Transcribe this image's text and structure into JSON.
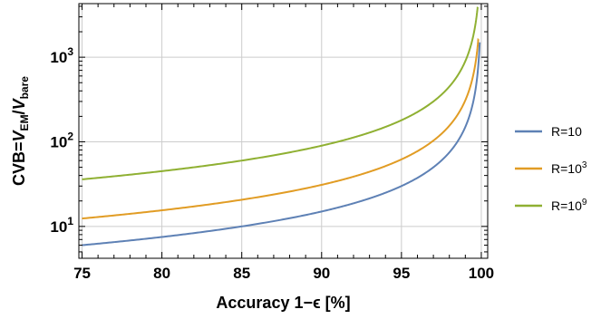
{
  "chart_data": {
    "type": "line",
    "title": "",
    "xlabel": "Accuracy 1−ϵ [%]",
    "ylabel": {
      "prefix": "CVB=",
      "num_var": "V",
      "num_sub": "EM",
      "slash": "/",
      "den_var": "V",
      "den_sub": "bare"
    },
    "xlim": [
      74.8,
      100.4
    ],
    "ylim": [
      4.2,
      4300
    ],
    "y_scale": "log",
    "x_ticks": [
      "75",
      "80",
      "85",
      "90",
      "95",
      "100"
    ],
    "x_tick_values": [
      75,
      80,
      85,
      90,
      95,
      100
    ],
    "y_ticks": [
      {
        "value": 10,
        "base": "10",
        "exp": "1"
      },
      {
        "value": 100,
        "base": "10",
        "exp": "2"
      },
      {
        "value": 1000,
        "base": "10",
        "exp": "3"
      }
    ],
    "grid": true,
    "legend_position": "right",
    "series": [
      {
        "name_base": "R=10",
        "name_exp": "",
        "color": "#5e81b5",
        "k": 1.5,
        "max_x": 99.9
      },
      {
        "name_base": "R=10",
        "name_exp": "3",
        "color": "#e19c24",
        "k": 3.1,
        "max_x": 99.81
      },
      {
        "name_base": "R=10",
        "name_exp": "9",
        "color": "#8fb032",
        "k": 9.0,
        "max_x": 99.77
      }
    ]
  }
}
